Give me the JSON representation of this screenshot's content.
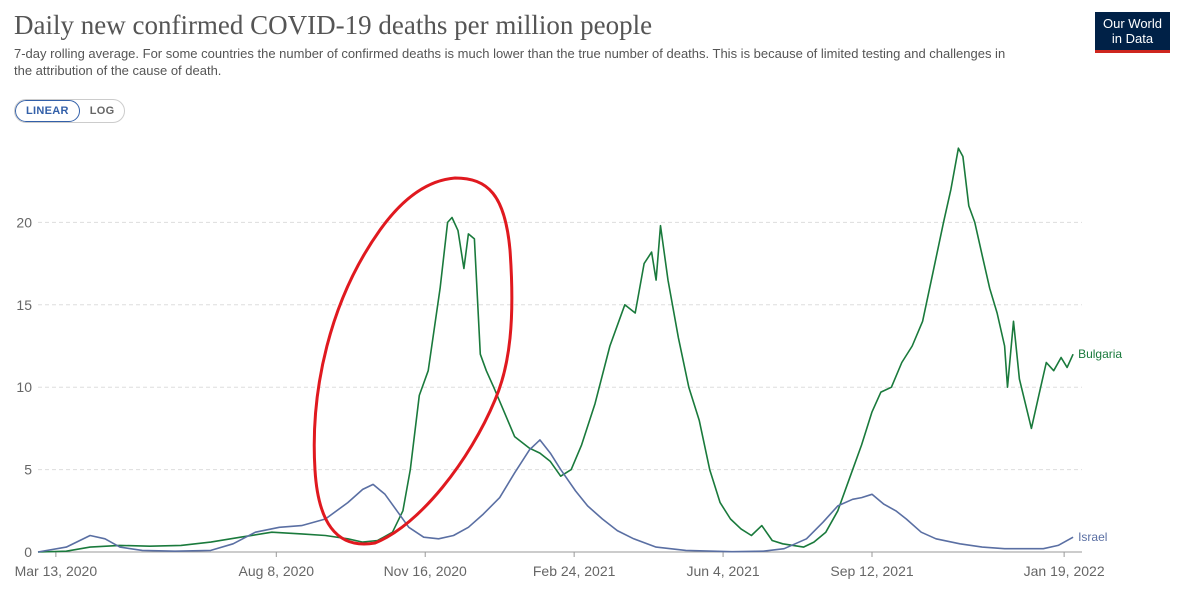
{
  "header": {
    "title": "Daily new confirmed COVID-19 deaths per million people",
    "subtitle": "7-day rolling average. For some countries the number of confirmed deaths is much lower than the true number of deaths. This is because of limited testing and challenges in the attribution of the cause of death."
  },
  "logo": {
    "line1": "Our World",
    "line2": "in Data"
  },
  "scale_toggle": {
    "linear_label": "LINEAR",
    "log_label": "LOG",
    "selected": "LINEAR"
  },
  "colors": {
    "bulgaria": "#1a7a3c",
    "israel": "#5a6fa3",
    "annotation": "#e0191f",
    "grid": "#dddddd",
    "axis_text": "#666666"
  },
  "chart_data": {
    "type": "line",
    "title": "Daily new confirmed COVID-19 deaths per million people",
    "xlabel": "",
    "ylabel": "",
    "x_range": [
      "2020-03-01",
      "2022-01-31"
    ],
    "ylim": [
      0,
      25
    ],
    "y_ticks": [
      0,
      5,
      10,
      15,
      20
    ],
    "x_tick_labels": [
      {
        "date": "2020-03-13",
        "label": "Mar 13, 2020"
      },
      {
        "date": "2020-08-08",
        "label": "Aug 8, 2020"
      },
      {
        "date": "2020-11-16",
        "label": "Nov 16, 2020"
      },
      {
        "date": "2021-02-24",
        "label": "Feb 24, 2021"
      },
      {
        "date": "2021-06-04",
        "label": "Jun 4, 2021"
      },
      {
        "date": "2021-09-12",
        "label": "Sep 12, 2021"
      },
      {
        "date": "2022-01-19",
        "label": "Jan 19, 2022"
      }
    ],
    "grid": true,
    "legend": "end-of-line labels",
    "series": [
      {
        "name": "Bulgaria",
        "points": [
          [
            "2020-03-01",
            0.0
          ],
          [
            "2020-03-20",
            0.05
          ],
          [
            "2020-04-05",
            0.3
          ],
          [
            "2020-04-25",
            0.4
          ],
          [
            "2020-05-15",
            0.35
          ],
          [
            "2020-06-05",
            0.4
          ],
          [
            "2020-06-25",
            0.6
          ],
          [
            "2020-07-15",
            0.9
          ],
          [
            "2020-08-05",
            1.2
          ],
          [
            "2020-08-25",
            1.1
          ],
          [
            "2020-09-10",
            1.0
          ],
          [
            "2020-09-25",
            0.8
          ],
          [
            "2020-10-05",
            0.6
          ],
          [
            "2020-10-15",
            0.7
          ],
          [
            "2020-10-25",
            1.2
          ],
          [
            "2020-11-01",
            2.5
          ],
          [
            "2020-11-06",
            5.0
          ],
          [
            "2020-11-12",
            9.5
          ],
          [
            "2020-11-18",
            11.0
          ],
          [
            "2020-11-26",
            16.0
          ],
          [
            "2020-12-01",
            20.0
          ],
          [
            "2020-12-04",
            20.3
          ],
          [
            "2020-12-08",
            19.5
          ],
          [
            "2020-12-12",
            17.2
          ],
          [
            "2020-12-15",
            19.3
          ],
          [
            "2020-12-19",
            19.0
          ],
          [
            "2020-12-23",
            12.0
          ],
          [
            "2020-12-27",
            11.0
          ],
          [
            "2021-01-01",
            10.0
          ],
          [
            "2021-01-08",
            8.5
          ],
          [
            "2021-01-15",
            7.0
          ],
          [
            "2021-01-25",
            6.3
          ],
          [
            "2021-02-01",
            6.0
          ],
          [
            "2021-02-08",
            5.5
          ],
          [
            "2021-02-15",
            4.6
          ],
          [
            "2021-02-22",
            5.0
          ],
          [
            "2021-03-01",
            6.5
          ],
          [
            "2021-03-10",
            9.0
          ],
          [
            "2021-03-20",
            12.5
          ],
          [
            "2021-03-30",
            15.0
          ],
          [
            "2021-04-06",
            14.5
          ],
          [
            "2021-04-12",
            17.5
          ],
          [
            "2021-04-17",
            18.2
          ],
          [
            "2021-04-20",
            16.5
          ],
          [
            "2021-04-23",
            19.8
          ],
          [
            "2021-04-28",
            16.5
          ],
          [
            "2021-05-05",
            13.0
          ],
          [
            "2021-05-12",
            10.0
          ],
          [
            "2021-05-19",
            8.0
          ],
          [
            "2021-05-26",
            5.0
          ],
          [
            "2021-06-02",
            3.0
          ],
          [
            "2021-06-09",
            2.0
          ],
          [
            "2021-06-16",
            1.4
          ],
          [
            "2021-06-23",
            1.0
          ],
          [
            "2021-06-30",
            1.6
          ],
          [
            "2021-07-07",
            0.7
          ],
          [
            "2021-07-14",
            0.5
          ],
          [
            "2021-07-21",
            0.4
          ],
          [
            "2021-07-28",
            0.3
          ],
          [
            "2021-08-04",
            0.6
          ],
          [
            "2021-08-12",
            1.2
          ],
          [
            "2021-08-20",
            2.5
          ],
          [
            "2021-08-28",
            4.5
          ],
          [
            "2021-09-05",
            6.5
          ],
          [
            "2021-09-12",
            8.5
          ],
          [
            "2021-09-18",
            9.7
          ],
          [
            "2021-09-25",
            10.0
          ],
          [
            "2021-10-02",
            11.5
          ],
          [
            "2021-10-09",
            12.5
          ],
          [
            "2021-10-16",
            14.0
          ],
          [
            "2021-10-23",
            17.0
          ],
          [
            "2021-10-30",
            20.0
          ],
          [
            "2021-11-04",
            22.0
          ],
          [
            "2021-11-09",
            24.5
          ],
          [
            "2021-11-12",
            24.0
          ],
          [
            "2021-11-16",
            21.0
          ],
          [
            "2021-11-20",
            20.0
          ],
          [
            "2021-11-25",
            18.0
          ],
          [
            "2021-11-30",
            16.0
          ],
          [
            "2021-12-05",
            14.5
          ],
          [
            "2021-12-10",
            12.5
          ],
          [
            "2021-12-12",
            10.0
          ],
          [
            "2021-12-16",
            14.0
          ],
          [
            "2021-12-20",
            10.5
          ],
          [
            "2021-12-24",
            9.0
          ],
          [
            "2021-12-28",
            7.5
          ],
          [
            "2022-01-02",
            9.5
          ],
          [
            "2022-01-07",
            11.5
          ],
          [
            "2022-01-12",
            11.0
          ],
          [
            "2022-01-17",
            11.8
          ],
          [
            "2022-01-21",
            11.2
          ],
          [
            "2022-01-25",
            12.0
          ]
        ]
      },
      {
        "name": "Israel",
        "points": [
          [
            "2020-03-01",
            0.0
          ],
          [
            "2020-03-20",
            0.3
          ],
          [
            "2020-04-05",
            1.0
          ],
          [
            "2020-04-15",
            0.8
          ],
          [
            "2020-04-25",
            0.3
          ],
          [
            "2020-05-10",
            0.1
          ],
          [
            "2020-06-01",
            0.05
          ],
          [
            "2020-06-25",
            0.1
          ],
          [
            "2020-07-10",
            0.5
          ],
          [
            "2020-07-25",
            1.2
          ],
          [
            "2020-08-10",
            1.5
          ],
          [
            "2020-08-25",
            1.6
          ],
          [
            "2020-09-10",
            2.0
          ],
          [
            "2020-09-25",
            3.0
          ],
          [
            "2020-10-05",
            3.8
          ],
          [
            "2020-10-12",
            4.1
          ],
          [
            "2020-10-20",
            3.5
          ],
          [
            "2020-10-28",
            2.5
          ],
          [
            "2020-11-05",
            1.5
          ],
          [
            "2020-11-15",
            0.9
          ],
          [
            "2020-11-25",
            0.8
          ],
          [
            "2020-12-05",
            1.0
          ],
          [
            "2020-12-15",
            1.5
          ],
          [
            "2020-12-25",
            2.3
          ],
          [
            "2021-01-05",
            3.3
          ],
          [
            "2021-01-15",
            4.8
          ],
          [
            "2021-01-25",
            6.2
          ],
          [
            "2021-02-01",
            6.8
          ],
          [
            "2021-02-08",
            6.0
          ],
          [
            "2021-02-15",
            5.0
          ],
          [
            "2021-02-25",
            3.7
          ],
          [
            "2021-03-05",
            2.8
          ],
          [
            "2021-03-15",
            2.0
          ],
          [
            "2021-03-25",
            1.3
          ],
          [
            "2021-04-05",
            0.8
          ],
          [
            "2021-04-20",
            0.3
          ],
          [
            "2021-05-10",
            0.1
          ],
          [
            "2021-06-10",
            0.02
          ],
          [
            "2021-07-01",
            0.05
          ],
          [
            "2021-07-15",
            0.2
          ],
          [
            "2021-07-30",
            0.8
          ],
          [
            "2021-08-10",
            1.8
          ],
          [
            "2021-08-20",
            2.8
          ],
          [
            "2021-08-30",
            3.2
          ],
          [
            "2021-09-05",
            3.3
          ],
          [
            "2021-09-12",
            3.5
          ],
          [
            "2021-09-20",
            2.9
          ],
          [
            "2021-09-28",
            2.5
          ],
          [
            "2021-10-05",
            2.0
          ],
          [
            "2021-10-15",
            1.2
          ],
          [
            "2021-10-25",
            0.8
          ],
          [
            "2021-11-10",
            0.5
          ],
          [
            "2021-11-25",
            0.3
          ],
          [
            "2021-12-10",
            0.2
          ],
          [
            "2021-12-25",
            0.2
          ],
          [
            "2022-01-05",
            0.2
          ],
          [
            "2022-01-15",
            0.4
          ],
          [
            "2022-01-25",
            0.9
          ]
        ]
      }
    ]
  }
}
